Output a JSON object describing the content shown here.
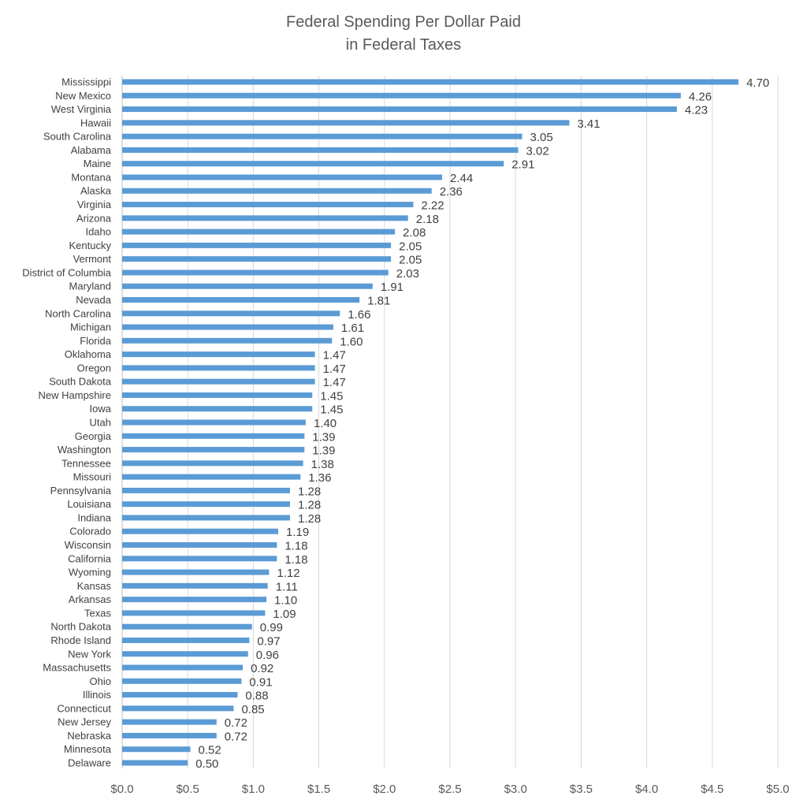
{
  "chart_data": {
    "type": "bar",
    "orientation": "horizontal",
    "title_lines": [
      "Federal Spending Per Dollar Paid",
      "in Federal Taxes"
    ],
    "xlabel": "",
    "ylabel": "",
    "xlim": [
      0,
      5
    ],
    "x_ticks": [
      0,
      0.5,
      1,
      1.5,
      2,
      2.5,
      3,
      3.5,
      4,
      4.5,
      5
    ],
    "x_tick_labels": [
      "$0.0",
      "$0.5",
      "$1.0",
      "$1.5",
      "$2.0",
      "$2.5",
      "$3.0",
      "$3.5",
      "$4.0",
      "$4.5",
      "$5.0"
    ],
    "grid": "vertical",
    "legend": "none",
    "bar_color": "#5b9bd5",
    "categories": [
      "Mississippi",
      "New Mexico",
      "West Virginia",
      "Hawaii",
      "South Carolina",
      "Alabama",
      "Maine",
      "Montana",
      "Alaska",
      "Virginia",
      "Arizona",
      "Idaho",
      "Kentucky",
      "Vermont",
      "District of Columbia",
      "Maryland",
      "Nevada",
      "North Carolina",
      "Michigan",
      "Florida",
      "Oklahoma",
      "Oregon",
      "South Dakota",
      "New Hampshire",
      "Iowa",
      "Utah",
      "Georgia",
      "Washington",
      "Tennessee",
      "Missouri",
      "Pennsylvania",
      "Louisiana",
      "Indiana",
      "Colorado",
      "Wisconsin",
      "California",
      "Wyoming",
      "Kansas",
      "Arkansas",
      "Texas",
      "North Dakota",
      "Rhode Island",
      "New York",
      "Massachusetts",
      "Ohio",
      "Illinois",
      "Connecticut",
      "New Jersey",
      "Nebraska",
      "Minnesota",
      "Delaware"
    ],
    "values": [
      4.7,
      4.26,
      4.23,
      3.41,
      3.05,
      3.02,
      2.91,
      2.44,
      2.36,
      2.22,
      2.18,
      2.08,
      2.05,
      2.05,
      2.03,
      1.91,
      1.81,
      1.66,
      1.61,
      1.6,
      1.47,
      1.47,
      1.47,
      1.45,
      1.45,
      1.4,
      1.39,
      1.39,
      1.38,
      1.36,
      1.28,
      1.28,
      1.28,
      1.19,
      1.18,
      1.18,
      1.12,
      1.11,
      1.1,
      1.09,
      0.99,
      0.97,
      0.96,
      0.92,
      0.91,
      0.88,
      0.85,
      0.72,
      0.72,
      0.52,
      0.5
    ],
    "value_labels": [
      "4.70",
      "4.26",
      "4.23",
      "3.41",
      "3.05",
      "3.02",
      "2.91",
      "2.44",
      "2.36",
      "2.22",
      "2.18",
      "2.08",
      "2.05",
      "2.05",
      "2.03",
      "1.91",
      "1.81",
      "1.66",
      "1.61",
      "1.60",
      "1.47",
      "1.47",
      "1.47",
      "1.45",
      "1.45",
      "1.40",
      "1.39",
      "1.39",
      "1.38",
      "1.36",
      "1.28",
      "1.28",
      "1.28",
      "1.19",
      "1.18",
      "1.18",
      "1.12",
      "1.11",
      "1.10",
      "1.09",
      "0.99",
      "0.97",
      "0.96",
      "0.92",
      "0.91",
      "0.88",
      "0.85",
      "0.72",
      "0.72",
      "0.52",
      "0.50"
    ]
  }
}
